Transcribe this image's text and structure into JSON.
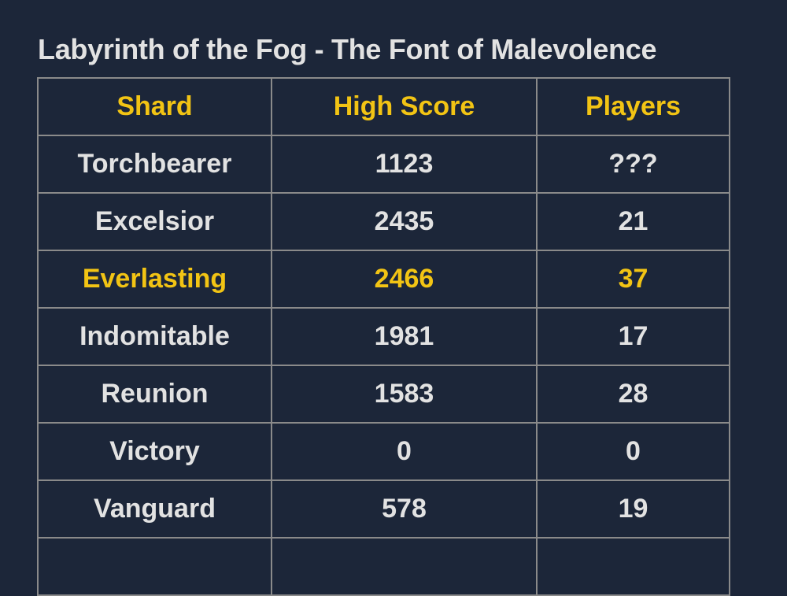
{
  "title": "Labyrinth of the Fog - The Font of Malevolence",
  "colors": {
    "background": "#1c2639",
    "highlight": "#f2c414",
    "text": "#e2e2e2",
    "border": "#8a8a8a"
  },
  "table": {
    "headers": [
      "Shard",
      "High Score",
      "Players"
    ],
    "rows": [
      {
        "shard": "Torchbearer",
        "high_score": "1123",
        "players": "???",
        "highlighted": false
      },
      {
        "shard": "Excelsior",
        "high_score": "2435",
        "players": "21",
        "highlighted": false
      },
      {
        "shard": "Everlasting",
        "high_score": "2466",
        "players": "37",
        "highlighted": true
      },
      {
        "shard": "Indomitable",
        "high_score": "1981",
        "players": "17",
        "highlighted": false
      },
      {
        "shard": "Reunion",
        "high_score": "1583",
        "players": "28",
        "highlighted": false
      },
      {
        "shard": "Victory",
        "high_score": "0",
        "players": "0",
        "highlighted": false
      },
      {
        "shard": "Vanguard",
        "high_score": "578",
        "players": "19",
        "highlighted": false
      }
    ]
  }
}
